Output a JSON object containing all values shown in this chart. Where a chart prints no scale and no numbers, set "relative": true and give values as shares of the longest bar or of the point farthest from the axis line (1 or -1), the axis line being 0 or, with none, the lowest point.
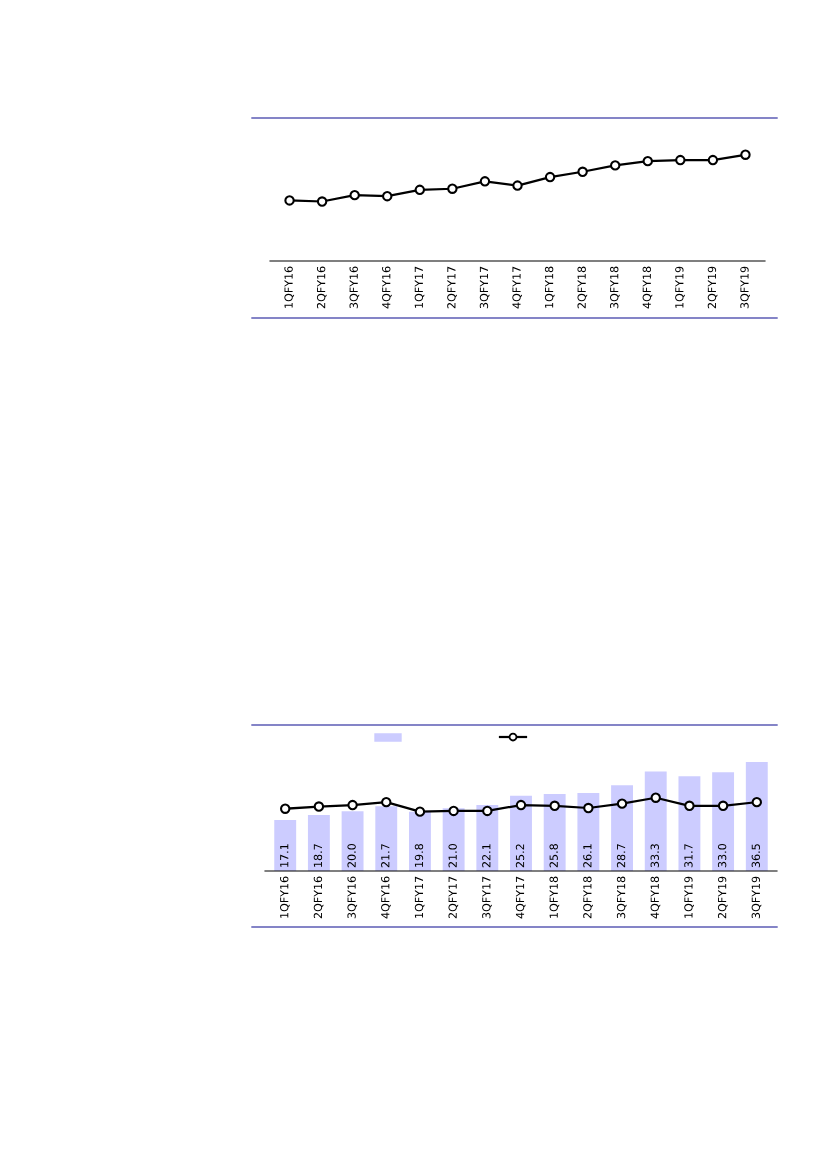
{
  "chart_data": [
    {
      "type": "line",
      "relative": true,
      "marker": "circle",
      "line_style": "solid",
      "grid": false,
      "categories": [
        "1QFY16",
        "2QFY16",
        "3QFY16",
        "4QFY16",
        "1QFY17",
        "2QFY17",
        "3QFY17",
        "4QFY17",
        "1QFY18",
        "2QFY18",
        "3QFY18",
        "4QFY18",
        "1QFY19",
        "2QFY19",
        "3QFY19"
      ],
      "series": [
        {
          "color": "#000000",
          "values": [
            0.57,
            0.56,
            0.62,
            0.61,
            0.67,
            0.68,
            0.75,
            0.71,
            0.79,
            0.84,
            0.9,
            0.94,
            0.95,
            0.95,
            1
          ]
        }
      ]
    },
    {
      "type": "bar",
      "grid": false,
      "categories": [
        "1QFY16",
        "2QFY16",
        "3QFY16",
        "4QFY16",
        "1QFY17",
        "2QFY17",
        "3QFY17",
        "4QFY17",
        "1QFY18",
        "2QFY18",
        "3QFY18",
        "4QFY18",
        "1QFY19",
        "2QFY19",
        "3QFY19"
      ],
      "series": [
        {
          "color": "#ccccff",
          "values": [
            17.1,
            18.7,
            20.0,
            21.7,
            19.8,
            21.0,
            22.1,
            25.2,
            25.8,
            26.1,
            28.7,
            33.3,
            31.7,
            33.0,
            36.5
          ],
          "value_labels": [
            "17.1",
            "18.7",
            "20.0",
            "21.7",
            "19.8",
            "21.0",
            "22.1",
            "25.2",
            "25.8",
            "26.1",
            "28.7",
            "33.3",
            "31.7",
            "33.0",
            "36.5"
          ]
        }
      ]
    },
    {
      "type": "line",
      "relative": true,
      "marker": "circle",
      "line_style": "solid",
      "grid": false,
      "categories": [
        null,
        null,
        null,
        null,
        null,
        null,
        null,
        null,
        null,
        null,
        null,
        null,
        null,
        null,
        null
      ],
      "series": [
        {
          "color": "#000000",
          "values": [
            0.85,
            0.88,
            0.9,
            0.94,
            0.81,
            0.82,
            0.82,
            0.9,
            0.89,
            0.86,
            0.92,
            1,
            0.89,
            0.89,
            0.94
          ]
        }
      ]
    }
  ]
}
